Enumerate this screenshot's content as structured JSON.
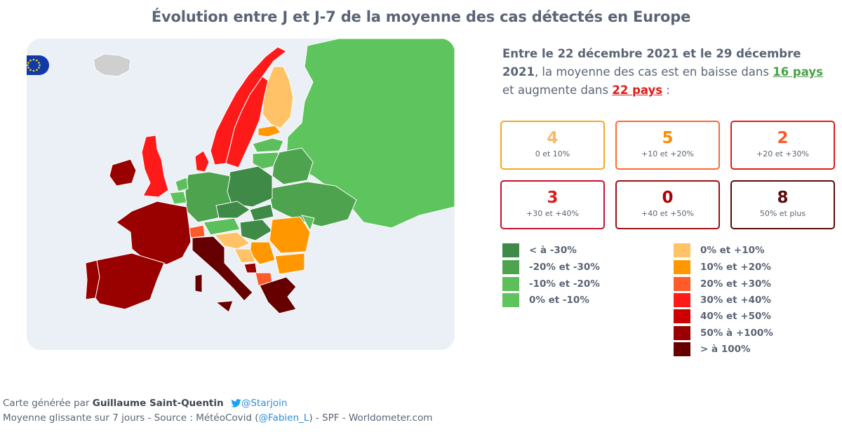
{
  "title": "Évolution entre J et J-7 de la moyenne des cas détectés en Europe",
  "summary": {
    "period": "Entre le 22 décembre 2021 et le 29 décembre 2021",
    "text_a": ", la moyenne des cas est en baisse dans",
    "down_count": "16 pays",
    "text_b": "et augmente dans",
    "up_count": "22 pays",
    "text_c": " :"
  },
  "boxes": [
    {
      "value": "4",
      "label": "0 et 10%",
      "color": "#f5a623",
      "num_color": "#f7b96a"
    },
    {
      "value": "5",
      "label": "+10 et +20%",
      "color": "#ff6a2c",
      "num_color": "#ff8c00"
    },
    {
      "value": "2",
      "label": "+20 et +30%",
      "color": "#e01b1b",
      "num_color": "#ff5a2a"
    },
    {
      "value": "3",
      "label": "+30 et +40%",
      "color": "#c8102e",
      "num_color": "#e01b1b"
    },
    {
      "value": "0",
      "label": "+40 et +50%",
      "color": "#9b0f0f",
      "num_color": "#b00000"
    },
    {
      "value": "8",
      "label": "50% et plus",
      "color": "#5b0a0a",
      "num_color": "#5b0a0a"
    }
  ],
  "legend_down": [
    {
      "label": "< à -30%",
      "color": "#3f8a47"
    },
    {
      "label": "-20% et -30%",
      "color": "#4ea34f"
    },
    {
      "label": "-10% et -20%",
      "color": "#5cbf5c"
    },
    {
      "label": "0% et -10%",
      "color": "#5ec45e"
    }
  ],
  "legend_up": [
    {
      "label": "0% et +10%",
      "color": "#ffc266"
    },
    {
      "label": "10% et +20%",
      "color": "#ff9800"
    },
    {
      "label": "20% et +30%",
      "color": "#ff5a2a"
    },
    {
      "label": "30% et +40%",
      "color": "#ff1a1a"
    },
    {
      "label": "40% et +50%",
      "color": "#cc0000"
    },
    {
      "label": "50% à +100%",
      "color": "#990000"
    },
    {
      "label": "> à 100%",
      "color": "#660000"
    }
  ],
  "footer": {
    "line1_prefix": "Carte générée par",
    "author": "Guillaume Saint-Quentin",
    "handle": "@Starjoin",
    "line2_prefix": "Moyenne glissante sur 7 jours - Source : MétéoCovid (",
    "source_handle": "@Fabien_L",
    "line2_suffix": ") - SPF - Worldometer.com"
  }
}
